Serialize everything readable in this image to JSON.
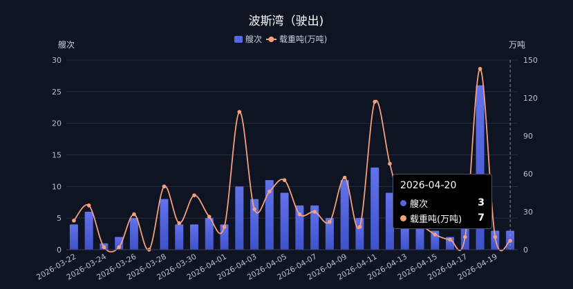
{
  "colors": {
    "bar_top": "#6272ea",
    "bar_bottom": "#3f52c9",
    "line": "#f5a07e",
    "crosshair": "#8a90a6"
  },
  "chart_data": {
    "type": "bar",
    "title": "波斯湾（驶出)",
    "legend": [
      "艘次",
      "载重吨(万吨)"
    ],
    "legend_position": "top-center",
    "y_left_label": "艘次",
    "y_right_label": "万吨",
    "y_left_ticks": [
      "0",
      "5",
      "10",
      "15",
      "20",
      "25",
      "30"
    ],
    "y_right_ticks": [
      "0",
      "30",
      "60",
      "90",
      "120",
      "150"
    ],
    "ylim_left": [
      0,
      30
    ],
    "ylim_right": [
      0,
      150
    ],
    "grid": true,
    "categories": [
      "2026-03-22",
      "2026-03-23",
      "2026-03-24",
      "2026-03-25",
      "2026-03-26",
      "2026-03-27",
      "2026-03-28",
      "2026-03-29",
      "2026-03-30",
      "2026-03-31",
      "2026-04-01",
      "2026-04-02",
      "2026-04-03",
      "2026-04-04",
      "2026-04-05",
      "2026-04-06",
      "2026-04-07",
      "2026-04-08",
      "2026-04-09",
      "2026-04-10",
      "2026-04-11",
      "2026-04-12",
      "2026-04-13",
      "2026-04-14",
      "2026-04-15",
      "2026-04-16",
      "2026-04-17",
      "2026-04-18",
      "2026-04-19",
      "2026-04-20"
    ],
    "x_tick_labels": [
      "2026-03-22",
      "2026-03-24",
      "2026-03-26",
      "2026-03-28",
      "2026-03-30",
      "2026-04-01",
      "2026-04-03",
      "2026-04-05",
      "2026-04-07",
      "2026-04-09",
      "2026-04-11",
      "2026-04-13",
      "2026-04-15",
      "2026-04-17",
      "2026-04-19"
    ],
    "series": [
      {
        "name": "艘次",
        "type": "bar",
        "axis": "left",
        "values": [
          4,
          6,
          1,
          2,
          5,
          0,
          8,
          4,
          4,
          5,
          4,
          10,
          8,
          11,
          9,
          7,
          7,
          5,
          11,
          5,
          13,
          9,
          4,
          4,
          3,
          2,
          7,
          26,
          3,
          3
        ]
      },
      {
        "name": "载重吨(万吨)",
        "type": "line",
        "axis": "right",
        "smooth": true,
        "values": [
          23,
          35,
          2,
          2,
          28,
          0,
          50,
          21,
          43,
          26,
          18,
          109,
          32,
          46,
          55,
          28,
          30,
          22,
          57,
          18,
          117,
          68,
          25,
          20,
          12,
          8,
          10,
          143,
          10,
          7
        ]
      }
    ]
  },
  "tooltip": {
    "date": "2026-04-20",
    "rows": [
      {
        "name": "艘次",
        "value": "3"
      },
      {
        "name": "载重吨(万吨)",
        "value": "7"
      }
    ]
  }
}
